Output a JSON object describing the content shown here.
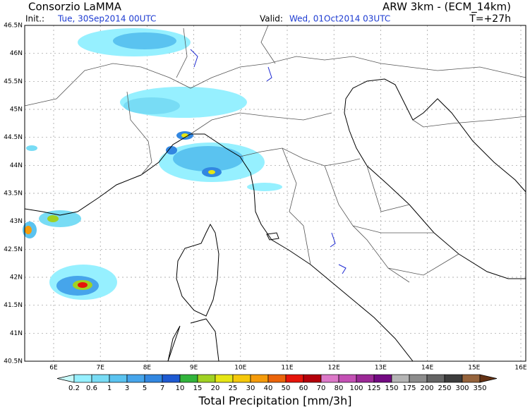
{
  "header": {
    "title": "Consorzio LaMMA",
    "init_label": "Init.:",
    "init_time": "Tue, 30Sep2014 00UTC",
    "valid_label": "Valid:",
    "valid_time": "Wed, 01Oct2014 03UTC",
    "model": "ARW 3km - (ECM_14km)",
    "lead_time": "T=+27h"
  },
  "map": {
    "lat_labels": [
      "46.5N",
      "46N",
      "45.5N",
      "45N",
      "44.5N",
      "44N",
      "43.5N",
      "43N",
      "42.5N",
      "42N",
      "41.5N",
      "41N",
      "40.5N"
    ],
    "lon_labels": [
      "6E",
      "7E",
      "8E",
      "9E",
      "10E",
      "11E",
      "12E",
      "13E",
      "14E",
      "15E",
      "16E"
    ]
  },
  "legend": {
    "title": "Total Precipitation [mm/3h]",
    "labels": [
      "0.2",
      "0.6",
      "1",
      "3",
      "5",
      "7",
      "10",
      "15",
      "20",
      "25",
      "30",
      "40",
      "50",
      "60",
      "70",
      "80",
      "100",
      "125",
      "150",
      "175",
      "200",
      "250",
      "300",
      "350"
    ],
    "colors": [
      "#c8fafa",
      "#96f0ff",
      "#78dcf5",
      "#5ac3f0",
      "#46a5eb",
      "#3287e1",
      "#1e5ad2",
      "#32b43c",
      "#a0d223",
      "#e6e614",
      "#f5c80a",
      "#f59b0a",
      "#eb640a",
      "#e6140a",
      "#b4000a",
      "#dc78c8",
      "#c350b4",
      "#9b2896",
      "#730a82",
      "#b4b4b4",
      "#8c8c8c",
      "#646464",
      "#3c3c3c",
      "#96643c",
      "#643214"
    ]
  }
}
